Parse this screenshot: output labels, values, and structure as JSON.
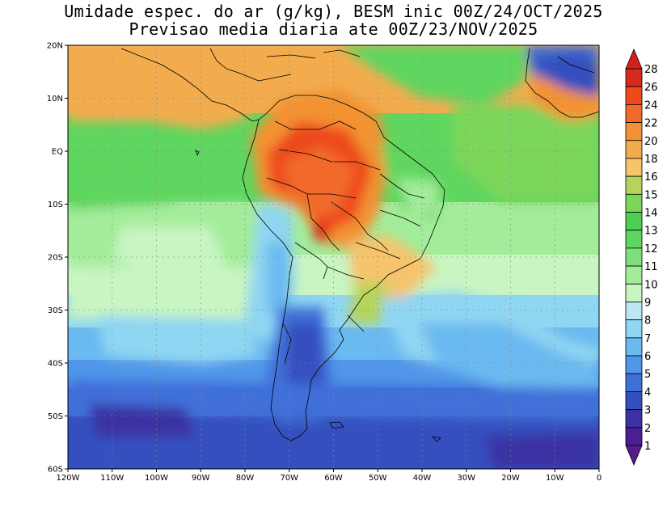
{
  "title": {
    "line1": "Umidade espec. do ar (g/kg), BESM inic 00Z/24/OCT/2025",
    "line2": "Previsao media diaria ate 00Z/23/NOV/2025"
  },
  "map": {
    "lon_range": [
      -120,
      0
    ],
    "lat_range": [
      -60,
      20
    ],
    "lat_ticks": [
      "20N",
      "10N",
      "EQ",
      "10S",
      "20S",
      "30S",
      "40S",
      "50S",
      "60S"
    ],
    "lat_values": [
      20,
      10,
      0,
      -10,
      -20,
      -30,
      -40,
      -50,
      -60
    ],
    "lon_ticks": [
      "120W",
      "110W",
      "100W",
      "90W",
      "80W",
      "70W",
      "60W",
      "50W",
      "40W",
      "30W",
      "20W",
      "10W",
      "0"
    ],
    "lon_values": [
      -120,
      -110,
      -100,
      -90,
      -80,
      -70,
      -60,
      -50,
      -40,
      -30,
      -20,
      -10,
      0
    ],
    "grid": "dotted"
  },
  "colorbar": {
    "levels": [
      "28",
      "26",
      "24",
      "22",
      "20",
      "18",
      "16",
      "15",
      "14",
      "13",
      "12",
      "11",
      "10",
      "9",
      "8",
      "7",
      "6",
      "5",
      "4",
      "3",
      "2",
      "1"
    ],
    "colors": [
      "#d62a1e",
      "#ee4a1c",
      "#f26a2a",
      "#f39233",
      "#f2ac4e",
      "#f5c46c",
      "#b6d45c",
      "#7bd65a",
      "#4ccf52",
      "#5fd65f",
      "#7de07b",
      "#a3ec9a",
      "#c8f5c2",
      "#bde8f2",
      "#8fd6f2",
      "#6ab9f0",
      "#5097ea",
      "#3f70d8",
      "#3450bf",
      "#3b32a3",
      "#4d1d92"
    ],
    "triangle_top_color": "#d6201a",
    "triangle_bottom_color": "#5a1a8c"
  }
}
